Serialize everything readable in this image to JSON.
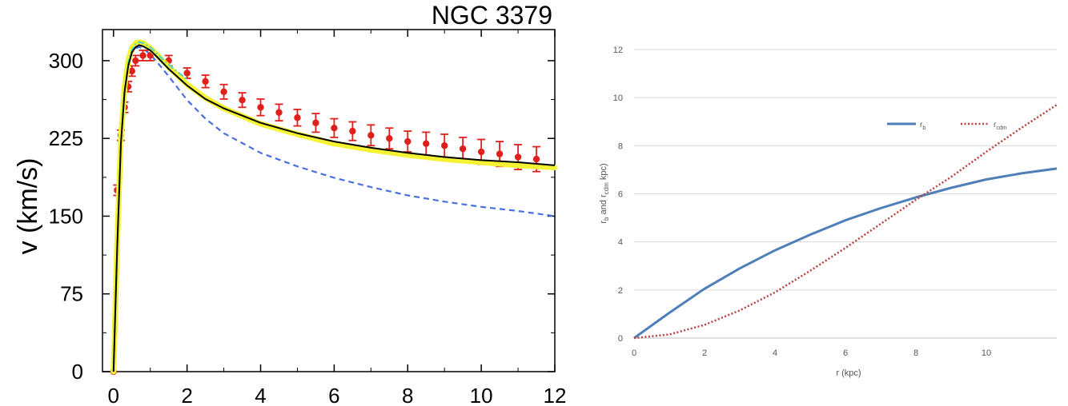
{
  "chart_data": [
    {
      "type": "line",
      "title": "NGC 3379",
      "xlabel": "",
      "ylabel": "v (km/s)",
      "xlim": [
        -0.3,
        12
      ],
      "ylim": [
        0,
        330
      ],
      "x_ticks": [
        "0",
        "2",
        "4",
        "6",
        "8",
        "10",
        "12"
      ],
      "x_tick_values": [
        0,
        2,
        4,
        6,
        8,
        10,
        12
      ],
      "y_ticks": [
        "0",
        "75",
        "150",
        "225",
        "300"
      ],
      "y_tick_values": [
        0,
        75,
        150,
        225,
        300
      ],
      "grid": false,
      "observations": {
        "r": [
          0.0,
          0.1,
          0.2,
          0.3,
          0.4,
          0.5,
          0.6,
          0.8,
          1.0,
          1.5,
          2.0,
          2.5,
          3.0,
          3.5,
          4.0,
          4.5,
          5.0,
          5.5,
          6.0,
          6.5,
          7.0,
          7.5,
          8.0,
          8.5,
          9.0,
          9.5,
          10.0,
          10.5,
          11.0,
          11.5
        ],
        "v": [
          0,
          175,
          228,
          255,
          275,
          290,
          300,
          305,
          305,
          300,
          288,
          280,
          270,
          262,
          255,
          250,
          245,
          240,
          235,
          232,
          228,
          225,
          222,
          220,
          218,
          215,
          212,
          210,
          207,
          205
        ],
        "err": [
          0,
          5,
          5,
          5,
          5,
          5,
          5,
          5,
          5,
          5,
          5,
          6,
          7,
          7,
          8,
          8,
          8,
          9,
          9,
          9,
          10,
          10,
          10,
          11,
          11,
          11,
          12,
          12,
          12,
          12
        ]
      },
      "series": [
        {
          "style": "solid",
          "x": [
            0,
            0.1,
            0.2,
            0.3,
            0.4,
            0.5,
            0.6,
            0.7,
            0.8,
            1.0,
            1.2,
            1.5,
            2.0,
            2.5,
            3.0,
            4.0,
            5.0,
            6.0,
            7.0,
            8.0,
            9.0,
            10.0,
            11.0,
            12.0
          ],
          "y": [
            0,
            120,
            220,
            270,
            295,
            308,
            313,
            315,
            314,
            310,
            303,
            292,
            276,
            263,
            254,
            240,
            230,
            222,
            216,
            211,
            207,
            204,
            202,
            199
          ]
        },
        {
          "style": "thick",
          "x": [
            0,
            0.1,
            0.2,
            0.3,
            0.4,
            0.5,
            0.6,
            0.7,
            0.8,
            1.0,
            1.2,
            1.5,
            2.0,
            2.5,
            3.0,
            4.0,
            5.0,
            6.0,
            7.0,
            8.0,
            9.0,
            10.0,
            11.0,
            12.0
          ],
          "y": [
            0,
            125,
            225,
            275,
            300,
            312,
            317,
            318,
            317,
            312,
            305,
            294,
            277,
            264,
            254,
            239,
            229,
            220,
            214,
            209,
            205,
            202,
            199,
            197
          ]
        },
        {
          "style": "dash-dot",
          "x": [
            0,
            0.1,
            0.2,
            0.3,
            0.4,
            0.5,
            0.6,
            0.7,
            0.8,
            1.0,
            1.5,
            2.0
          ],
          "y": [
            0,
            120,
            220,
            272,
            298,
            310,
            316,
            318,
            317,
            313,
            296,
            282
          ]
        },
        {
          "style": "dashed",
          "x": [
            0,
            0.1,
            0.2,
            0.3,
            0.4,
            0.5,
            0.6,
            0.7,
            0.8,
            1.0,
            1.2,
            1.5,
            2.0,
            2.5,
            3.0,
            4.0,
            5.0,
            6.0,
            7.0,
            8.0,
            9.0,
            10.0,
            11.0,
            12.0
          ],
          "y": [
            0,
            120,
            220,
            270,
            295,
            307,
            312,
            313,
            312,
            306,
            298,
            285,
            262,
            244,
            230,
            211,
            198,
            187,
            178,
            170,
            164,
            159,
            155,
            150
          ]
        }
      ],
      "colors": {
        "observations": "#e0201c",
        "solid": "#000000",
        "thick": "#f4f232",
        "dash-dot": "#3fd8d2",
        "dashed": "#4a6fe0"
      }
    },
    {
      "type": "line",
      "title": "",
      "xlabel": "r  (kpc)",
      "ylabel_parts": [
        {
          "t": "r",
          "sub": false
        },
        {
          "t": "b",
          "sub": true
        },
        {
          "t": " and r",
          "sub": false
        },
        {
          "t": "cdm",
          "sub": true
        },
        {
          "t": " kpc)",
          "sub": false
        }
      ],
      "xlim": [
        0,
        12
      ],
      "ylim": [
        0,
        12
      ],
      "x_ticks": [
        "0",
        "2",
        "4",
        "6",
        "8",
        "10"
      ],
      "x_tick_values": [
        0,
        2,
        4,
        6,
        8,
        10
      ],
      "y_ticks": [
        "0",
        "2",
        "4",
        "6",
        "8",
        "10",
        "12"
      ],
      "y_tick_values": [
        0,
        2,
        4,
        6,
        8,
        10,
        12
      ],
      "grid": true,
      "legend_position": "upper-right",
      "series": [
        {
          "legend_main": "r",
          "legend_sub": "b",
          "style": "solid",
          "color": "#4f7fb8",
          "x": [
            0,
            1,
            2,
            3,
            4,
            5,
            6,
            7,
            8,
            9,
            10,
            11,
            12
          ],
          "y": [
            0,
            1.05,
            2.05,
            2.9,
            3.65,
            4.3,
            4.9,
            5.4,
            5.85,
            6.25,
            6.6,
            6.85,
            7.05
          ]
        },
        {
          "legend_main": "r",
          "legend_sub": "cdm",
          "style": "dotted",
          "color": "#b84040",
          "x": [
            0,
            1,
            2,
            3,
            4,
            5,
            6,
            7,
            8,
            9,
            10,
            11,
            12
          ],
          "y": [
            0,
            0.15,
            0.55,
            1.15,
            1.9,
            2.8,
            3.75,
            4.75,
            5.75,
            6.7,
            7.75,
            8.75,
            9.7
          ]
        }
      ]
    }
  ]
}
